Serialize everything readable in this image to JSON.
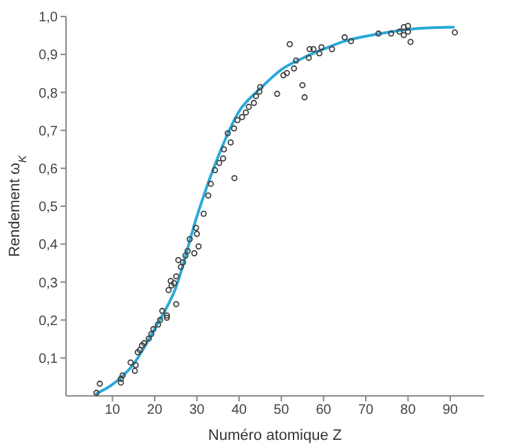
{
  "chart_data": {
    "type": "scatter",
    "xlabel": "Numéro atomique Z",
    "ylabel": "Rendement ω$_{K}$",
    "xlim": [
      -1,
      98
    ],
    "ylim": [
      0,
      1.0
    ],
    "xticks": [
      10,
      20,
      30,
      40,
      50,
      60,
      70,
      80,
      90
    ],
    "yticks": [
      {
        "value": 0.1,
        "label": "0,1"
      },
      {
        "value": 0.2,
        "label": "0,2"
      },
      {
        "value": 0.3,
        "label": "0,3"
      },
      {
        "value": 0.4,
        "label": "0,4"
      },
      {
        "value": 0.5,
        "label": "0,5"
      },
      {
        "value": 0.6,
        "label": "0,6"
      },
      {
        "value": 0.7,
        "label": "0,7"
      },
      {
        "value": 0.8,
        "label": "0,8"
      },
      {
        "value": 0.9,
        "label": "0,9"
      },
      {
        "value": 1.0,
        "label": "1,0"
      }
    ],
    "series": [
      {
        "color": "#404040",
        "marker": "circle",
        "x": [
          6.2,
          7,
          12,
          12,
          12.4,
          14.3,
          15.3,
          15.5,
          16,
          16.5,
          17,
          17.5,
          18.6,
          19.2,
          19.7,
          20.8,
          21.3,
          21.8,
          22.9,
          22.9,
          23.3,
          23.8,
          24,
          24.6,
          25.1,
          25.1,
          25.6,
          26.2,
          26.7,
          27.3,
          27.8,
          28.3,
          29.4,
          30,
          30.4,
          29.8,
          31.6,
          32.7,
          33.3,
          34.3,
          35.3,
          36.2,
          36.4,
          37.3,
          38,
          38.9,
          38.8,
          39.6,
          40.7,
          41.6,
          42.3,
          43.5,
          44,
          44.8,
          45,
          49,
          50.5,
          51.3,
          52,
          53,
          53.5,
          55,
          55.5,
          56.5,
          56.7,
          57.6,
          59,
          59.5,
          62,
          65,
          66.5,
          73,
          76,
          78,
          79,
          79,
          80,
          80,
          80.6,
          91.1
        ],
        "values": [
          0.008,
          0.032,
          0.035,
          0.045,
          0.054,
          0.088,
          0.066,
          0.081,
          0.115,
          0.121,
          0.133,
          0.139,
          0.151,
          0.163,
          0.176,
          0.188,
          0.2,
          0.224,
          0.212,
          0.206,
          0.279,
          0.303,
          0.291,
          0.297,
          0.242,
          0.315,
          0.358,
          0.34,
          0.352,
          0.37,
          0.382,
          0.413,
          0.376,
          0.427,
          0.394,
          0.443,
          0.48,
          0.528,
          0.559,
          0.595,
          0.614,
          0.626,
          0.65,
          0.692,
          0.668,
          0.574,
          0.705,
          0.727,
          0.735,
          0.747,
          0.762,
          0.772,
          0.79,
          0.802,
          0.814,
          0.796,
          0.845,
          0.851,
          0.927,
          0.863,
          0.884,
          0.819,
          0.787,
          0.891,
          0.914,
          0.914,
          0.903,
          0.919,
          0.914,
          0.945,
          0.935,
          0.955,
          0.955,
          0.96,
          0.951,
          0.972,
          0.96,
          0.975,
          0.933,
          0.958
        ]
      },
      {
        "type": "line",
        "color": "#29a9d8",
        "marker": "none",
        "line_style": "solid",
        "x": [
          6,
          10,
          15,
          20,
          25,
          30,
          35,
          40,
          45,
          50,
          55,
          60,
          65,
          70,
          75,
          80,
          85,
          91
        ],
        "values": [
          0.005,
          0.03,
          0.084,
          0.177,
          0.285,
          0.473,
          0.63,
          0.75,
          0.81,
          0.86,
          0.89,
          0.914,
          0.935,
          0.948,
          0.958,
          0.966,
          0.97,
          0.972
        ]
      }
    ]
  }
}
